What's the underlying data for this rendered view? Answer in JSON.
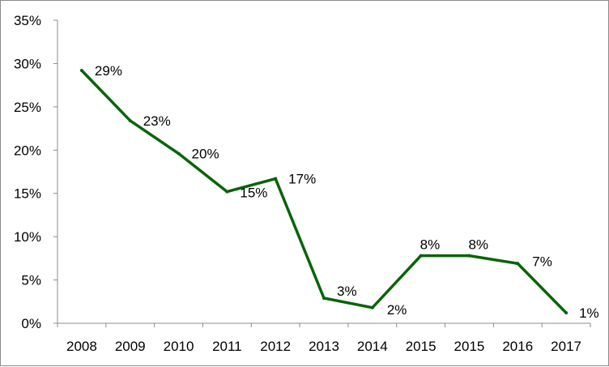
{
  "chart_data": {
    "type": "line",
    "title": "",
    "xlabel": "",
    "ylabel": "",
    "categories": [
      "2008",
      "2009",
      "2010",
      "2011",
      "2012",
      "2013",
      "2014",
      "2015",
      "2015",
      "2016",
      "2017"
    ],
    "series": [
      {
        "values": [
          29.2,
          23.4,
          19.6,
          15.2,
          16.7,
          2.9,
          1.8,
          7.8,
          7.8,
          6.9,
          1.2
        ],
        "data_labels": [
          "29%",
          "23%",
          "20%",
          "15%",
          "17%",
          "3%",
          "2%",
          "8%",
          "8%",
          "7%",
          "1%"
        ],
        "color": "#086408"
      }
    ],
    "ylim": [
      0,
      35
    ],
    "y_ticks": [
      0,
      5,
      10,
      15,
      20,
      25,
      30,
      35
    ],
    "y_tick_labels": [
      "0%",
      "5%",
      "10%",
      "15%",
      "20%",
      "25%",
      "30%",
      "35%"
    ],
    "grid": false,
    "legend": "none"
  }
}
